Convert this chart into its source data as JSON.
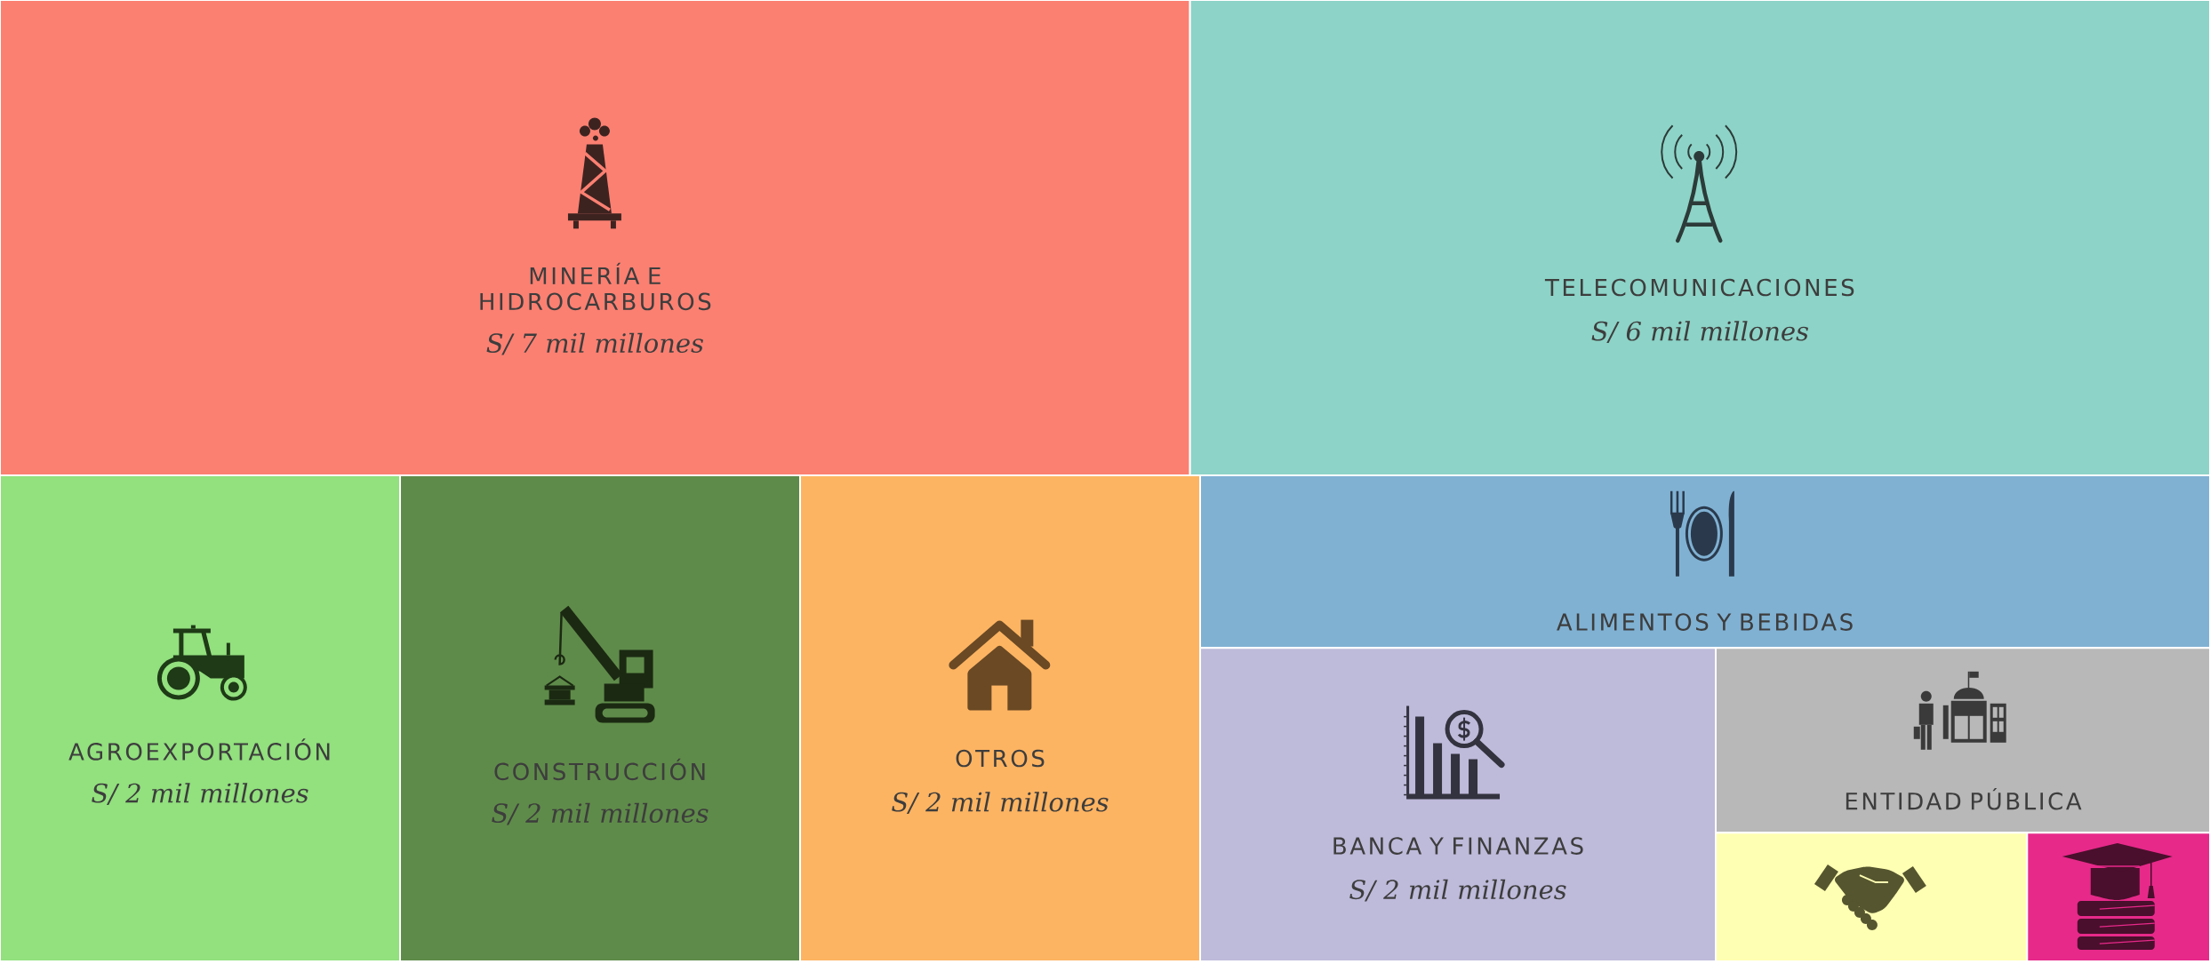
{
  "chart_data": {
    "type": "other",
    "categories": [
      "MINERÍA E HIDROCARBUROS",
      "TELECOMUNICACIONES",
      "AGROEXPORTACIÓN",
      "CONSTRUCCIÓN",
      "OTROS",
      "ALIMENTOS Y BEBIDAS",
      "BANCA Y FINANZAS",
      "ENTIDAD PÚBLICA",
      null,
      null
    ],
    "values": [
      7,
      6,
      2,
      2,
      2,
      null,
      2,
      null,
      null,
      null
    ],
    "value_labels": [
      "S/ 7 mil millones",
      "S/ 6 mil millones",
      "S/ 2 mil millones",
      "S/ 2 mil millones",
      "S/ 2 mil millones",
      null,
      "S/ 2 mil millones",
      null,
      null,
      null
    ],
    "colors": [
      "#fb8072",
      "#8dd3c7",
      "#92e07e",
      "#5f8b4a",
      "#fdb462",
      "#80b1d3",
      "#bebada",
      "#b8b8b8",
      "#ffffb3",
      "#e7298a"
    ]
  }
}
